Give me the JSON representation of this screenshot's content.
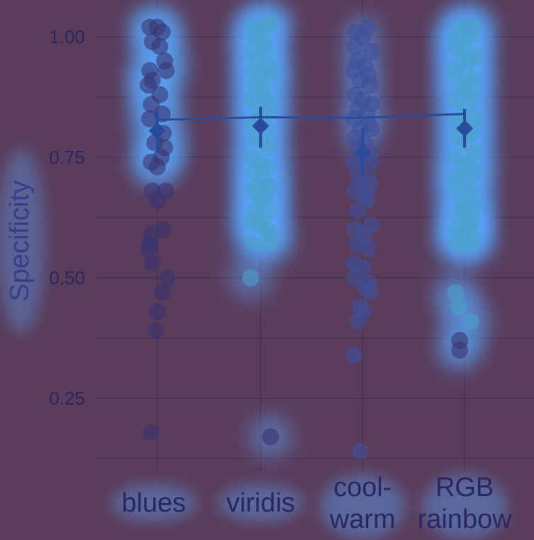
{
  "chart_data": {
    "type": "scatter",
    "title": "",
    "xlabel": "",
    "ylabel": "Specificity",
    "ylim": [
      0.12,
      1.05
    ],
    "yticks": [
      0.25,
      0.5,
      0.75,
      1.0
    ],
    "ytick_labels": [
      "0.25",
      "0.50",
      "0.75",
      "1.00"
    ],
    "categories": [
      "blues",
      "viridis",
      "cool-warm",
      "RGB rainbow"
    ],
    "category_labels": [
      [
        "blues"
      ],
      [
        "viridis"
      ],
      [
        "cool-",
        "warm"
      ],
      [
        "RGB",
        "rainbow"
      ]
    ],
    "grid": true,
    "summary": {
      "means": [
        0.805,
        0.815,
        0.76,
        0.81
      ],
      "ci_lower": [
        0.76,
        0.77,
        0.71,
        0.77
      ],
      "ci_upper": [
        0.845,
        0.855,
        0.81,
        0.85
      ],
      "trend_line": [
        0.828,
        0.833,
        0.832,
        0.84
      ]
    },
    "series": [
      {
        "category": "blues",
        "points": [
          [
            -0.15,
            1.02
          ],
          [
            0.0,
            1.02
          ],
          [
            0.1,
            1.01
          ],
          [
            -0.1,
            0.99
          ],
          [
            0.05,
            0.98
          ],
          [
            -0.15,
            0.93
          ],
          [
            0.15,
            0.95
          ],
          [
            0.18,
            0.93
          ],
          [
            -0.1,
            0.91
          ],
          [
            -0.18,
            0.9
          ],
          [
            0.05,
            0.88
          ],
          [
            -0.12,
            0.86
          ],
          [
            0.1,
            0.84
          ],
          [
            -0.15,
            0.83
          ],
          [
            0.12,
            0.8
          ],
          [
            -0.05,
            0.78
          ],
          [
            0.15,
            0.77
          ],
          [
            0.08,
            0.75
          ],
          [
            -0.12,
            0.74
          ],
          [
            0.0,
            0.73
          ],
          [
            -0.1,
            0.68
          ],
          [
            0.17,
            0.68
          ],
          [
            0.02,
            0.66
          ],
          [
            -0.12,
            0.59
          ],
          [
            0.12,
            0.6
          ],
          [
            -0.15,
            0.57
          ],
          [
            -0.18,
            0.56
          ],
          [
            -0.1,
            0.53
          ],
          [
            0.2,
            0.5
          ],
          [
            0.1,
            0.47
          ],
          [
            0.0,
            0.43
          ],
          [
            -0.03,
            0.39
          ],
          [
            -0.13,
            0.18
          ]
        ]
      },
      {
        "category": "viridis",
        "points": [
          [
            -0.15,
            1.02
          ],
          [
            0.0,
            1.02
          ],
          [
            0.15,
            1.02
          ],
          [
            0.2,
            1.03
          ],
          [
            -0.1,
            1.0
          ],
          [
            0.05,
            0.99
          ],
          [
            -0.18,
            0.97
          ],
          [
            0.1,
            0.97
          ],
          [
            -0.05,
            0.95
          ],
          [
            0.15,
            0.94
          ],
          [
            -0.15,
            0.93
          ],
          [
            0.0,
            0.92
          ],
          [
            0.2,
            0.92
          ],
          [
            -0.1,
            0.9
          ],
          [
            0.05,
            0.89
          ],
          [
            -0.18,
            0.87
          ],
          [
            0.12,
            0.87
          ],
          [
            -0.05,
            0.85
          ],
          [
            0.18,
            0.85
          ],
          [
            0.0,
            0.83
          ],
          [
            -0.15,
            0.82
          ],
          [
            0.1,
            0.81
          ],
          [
            -0.1,
            0.79
          ],
          [
            0.05,
            0.78
          ],
          [
            0.15,
            0.77
          ],
          [
            -0.18,
            0.75
          ],
          [
            0.0,
            0.74
          ],
          [
            0.12,
            0.73
          ],
          [
            -0.12,
            0.72
          ],
          [
            0.05,
            0.71
          ],
          [
            -0.05,
            0.69
          ],
          [
            0.18,
            0.69
          ],
          [
            -0.15,
            0.68
          ],
          [
            0.1,
            0.67
          ],
          [
            0.0,
            0.66
          ],
          [
            -0.1,
            0.64
          ],
          [
            0.15,
            0.64
          ],
          [
            -0.18,
            0.62
          ],
          [
            0.05,
            0.62
          ],
          [
            -0.05,
            0.61
          ],
          [
            0.12,
            0.6
          ],
          [
            0.18,
            0.59
          ],
          [
            -0.15,
            0.57
          ],
          [
            0.18,
            0.57
          ],
          [
            -0.2,
            0.5
          ],
          [
            0.2,
            0.17
          ]
        ]
      },
      {
        "category": "cool-warm",
        "points": [
          [
            -0.13,
            1.01
          ],
          [
            0.1,
            1.02
          ],
          [
            0.0,
            1.0
          ],
          [
            -0.15,
            0.98
          ],
          [
            0.18,
            0.97
          ],
          [
            -0.1,
            0.95
          ],
          [
            0.05,
            0.94
          ],
          [
            -0.18,
            0.93
          ],
          [
            0.12,
            0.92
          ],
          [
            -0.05,
            0.91
          ],
          [
            0.15,
            0.9
          ],
          [
            -0.15,
            0.88
          ],
          [
            0.0,
            0.87
          ],
          [
            0.18,
            0.86
          ],
          [
            -0.1,
            0.85
          ],
          [
            0.08,
            0.84
          ],
          [
            -0.18,
            0.83
          ],
          [
            0.12,
            0.82
          ],
          [
            -0.05,
            0.81
          ],
          [
            0.18,
            0.81
          ],
          [
            -0.15,
            0.79
          ],
          [
            0.05,
            0.78
          ],
          [
            -0.1,
            0.77
          ],
          [
            0.15,
            0.76
          ],
          [
            0.0,
            0.75
          ],
          [
            -0.18,
            0.74
          ],
          [
            0.18,
            0.74
          ],
          [
            -0.12,
            0.72
          ],
          [
            0.1,
            0.71
          ],
          [
            -0.05,
            0.7
          ],
          [
            0.15,
            0.69
          ],
          [
            -0.15,
            0.68
          ],
          [
            0.05,
            0.67
          ],
          [
            0.1,
            0.66
          ],
          [
            -0.1,
            0.64
          ],
          [
            0.18,
            0.61
          ],
          [
            -0.15,
            0.6
          ],
          [
            0.05,
            0.59
          ],
          [
            -0.1,
            0.57
          ],
          [
            0.1,
            0.56
          ],
          [
            -0.18,
            0.53
          ],
          [
            0.0,
            0.52
          ],
          [
            -0.15,
            0.5
          ],
          [
            0.12,
            0.49
          ],
          [
            0.05,
            0.48
          ],
          [
            0.15,
            0.47
          ],
          [
            -0.05,
            0.44
          ],
          [
            0.0,
            0.43
          ],
          [
            -0.1,
            0.41
          ],
          [
            -0.18,
            0.34
          ],
          [
            -0.05,
            0.14
          ]
        ]
      },
      {
        "category": "RGB rainbow",
        "points": [
          [
            -0.1,
            1.02
          ],
          [
            0.05,
            1.02
          ],
          [
            0.2,
            1.02
          ],
          [
            -0.15,
            1.0
          ],
          [
            0.12,
            1.0
          ],
          [
            -0.18,
            0.98
          ],
          [
            0.0,
            0.98
          ],
          [
            0.2,
            0.96
          ],
          [
            -0.1,
            0.95
          ],
          [
            0.1,
            0.95
          ],
          [
            -0.2,
            0.93
          ],
          [
            0.05,
            0.92
          ],
          [
            0.18,
            0.91
          ],
          [
            -0.12,
            0.9
          ],
          [
            0.0,
            0.89
          ],
          [
            0.15,
            0.88
          ],
          [
            -0.18,
            0.87
          ],
          [
            0.08,
            0.86
          ],
          [
            -0.05,
            0.84
          ],
          [
            0.2,
            0.83
          ],
          [
            -0.15,
            0.82
          ],
          [
            0.05,
            0.81
          ],
          [
            0.15,
            0.8
          ],
          [
            -0.1,
            0.79
          ],
          [
            0.0,
            0.78
          ],
          [
            0.18,
            0.76
          ],
          [
            -0.18,
            0.75
          ],
          [
            0.1,
            0.74
          ],
          [
            -0.05,
            0.73
          ],
          [
            0.2,
            0.72
          ],
          [
            -0.15,
            0.71
          ],
          [
            0.05,
            0.7
          ],
          [
            -0.18,
            0.69
          ],
          [
            0.12,
            0.68
          ],
          [
            -0.08,
            0.66
          ],
          [
            0.18,
            0.65
          ],
          [
            0.0,
            0.64
          ],
          [
            -0.12,
            0.63
          ],
          [
            0.15,
            0.62
          ],
          [
            0.05,
            0.61
          ],
          [
            -0.18,
            0.6
          ],
          [
            0.1,
            0.6
          ],
          [
            -0.05,
            0.59
          ],
          [
            0.2,
            0.58
          ],
          [
            -0.15,
            0.57
          ],
          [
            0.05,
            0.57
          ],
          [
            -0.18,
            0.47
          ],
          [
            -0.12,
            0.44
          ],
          [
            0.12,
            0.41
          ],
          [
            -0.1,
            0.37
          ],
          [
            -0.1,
            0.35
          ]
        ]
      }
    ],
    "colors": {
      "background": "#5a3d5c",
      "grid": "#4e3553",
      "point": "#3a3470",
      "point_alt": "#3f4f9a",
      "glow": "#5aa8ff",
      "glow_core": "#48e0e0",
      "summary": "#2a4a9a",
      "text": "#2b2560",
      "title_text": "#3c3a8a"
    }
  }
}
